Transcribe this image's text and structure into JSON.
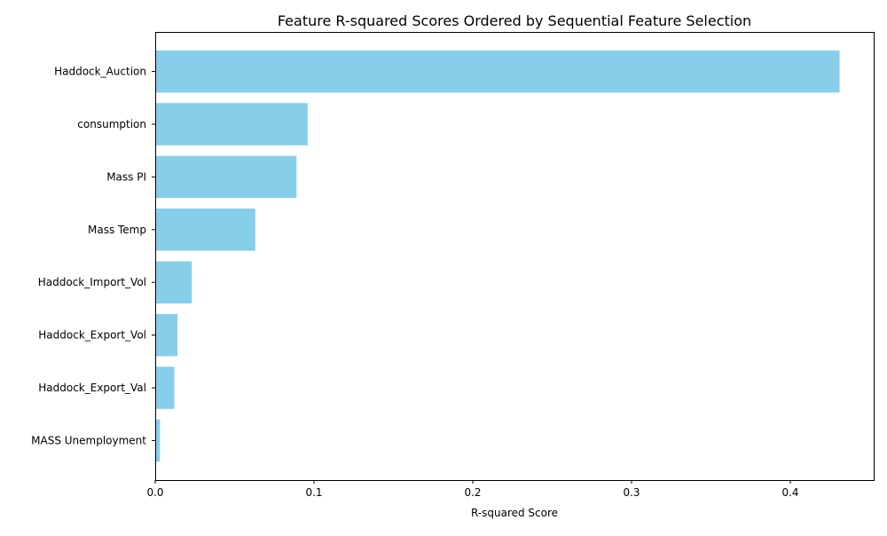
{
  "chart_data": {
    "type": "bar",
    "orientation": "horizontal",
    "title": "Feature R-squared Scores Ordered by Sequential Feature Selection",
    "xlabel": "R-squared Score",
    "ylabel": "",
    "xlim": [
      0,
      0.4525
    ],
    "xticks": [
      0.0,
      0.1,
      0.2,
      0.3,
      0.4
    ],
    "xtick_labels": [
      "0.0",
      "0.1",
      "0.2",
      "0.3",
      "0.4"
    ],
    "grid": false,
    "legend": "none",
    "bar_color": "#87CEEB",
    "categories": [
      "Haddock_Auction",
      "consumption",
      "Mass PI",
      "Mass Temp",
      "Haddock_Import_Vol",
      "Haddock_Export_Vol",
      "Haddock_Export_Val",
      "MASS Unemployment"
    ],
    "values": [
      0.431,
      0.096,
      0.089,
      0.063,
      0.023,
      0.014,
      0.012,
      0.003
    ]
  }
}
